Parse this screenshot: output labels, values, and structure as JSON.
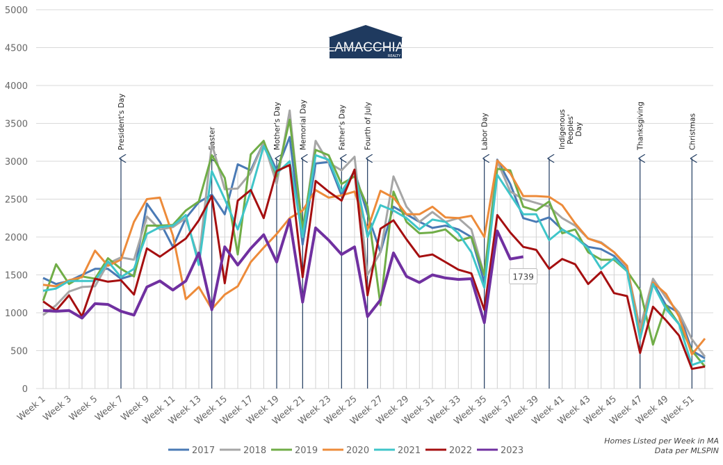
{
  "chart_data": {
    "type": "line",
    "logo": {
      "name": "LAMACCHIA",
      "tagline": "REALTY"
    },
    "categories": [
      "Week 1",
      null,
      "Week 3",
      null,
      "Week 5",
      null,
      "Week 7",
      null,
      "Week 9",
      null,
      "Week 11",
      null,
      "Week 13",
      null,
      "Week 15",
      null,
      "Week 17",
      null,
      "Week 19",
      null,
      "Week 21",
      null,
      "Week 23",
      null,
      "Week 25",
      null,
      "Week 27",
      null,
      "Week 29",
      null,
      "Week 31",
      null,
      "Week 33",
      null,
      "Week 35",
      null,
      "Week 37",
      null,
      "Week 39",
      null,
      "Week 41",
      null,
      "Week 43",
      null,
      "Week 45",
      null,
      "Week 47",
      null,
      "Week 49",
      null,
      "Week 51",
      null
    ],
    "ylim": [
      0,
      5000
    ],
    "yticks": [
      0,
      500,
      1000,
      1500,
      2000,
      2500,
      3000,
      3500,
      4000,
      4500,
      5000
    ],
    "grid": true,
    "series": [
      {
        "name": "2017",
        "color": "#4a7ab5",
        "values": [
          1460,
          1380,
          1420,
          1500,
          1580,
          1580,
          1450,
          1500,
          2440,
          2200,
          1870,
          2250,
          2460,
          2560,
          2300,
          2960,
          2880,
          3250,
          2880,
          3320,
          1900,
          2970,
          2990,
          2550,
          2870,
          2300,
          1800,
          2400,
          2300,
          2200,
          2120,
          2150,
          2100,
          2000,
          1400,
          3020,
          2700,
          2250,
          2200,
          2260,
          2100,
          2000,
          1870,
          1840,
          1750,
          1560,
          750,
          1400,
          1100,
          1000,
          500,
          400
        ]
      },
      {
        "name": "2018",
        "color": "#a6a6a6",
        "values": [
          970,
          1100,
          1280,
          1340,
          1350,
          1650,
          1730,
          1700,
          2270,
          2100,
          2130,
          2250,
          1700,
          3230,
          2630,
          2640,
          2850,
          3250,
          2700,
          3670,
          2000,
          3270,
          2980,
          2880,
          3060,
          1500,
          1800,
          2800,
          2400,
          2200,
          2330,
          2200,
          2250,
          2100,
          1500,
          3000,
          2600,
          2500,
          2450,
          2400,
          2250,
          2150,
          1980,
          1930,
          1800,
          1600,
          800,
          1450,
          1200,
          1000,
          650,
          420
        ]
      },
      {
        "name": "2019",
        "color": "#70ad47",
        "values": [
          1160,
          1640,
          1380,
          1480,
          1450,
          1720,
          1580,
          1480,
          2150,
          2150,
          2160,
          2350,
          2470,
          3080,
          2780,
          1770,
          3090,
          3270,
          2800,
          3550,
          2100,
          3150,
          3080,
          2700,
          2800,
          2400,
          1100,
          2600,
          2200,
          2050,
          2060,
          2100,
          1950,
          2000,
          1500,
          2900,
          2880,
          2400,
          2350,
          2470,
          2050,
          2100,
          1800,
          1700,
          1700,
          1550,
          1300,
          580,
          1100,
          850,
          500,
          290
        ]
      },
      {
        "name": "2020",
        "color": "#ed8b3a",
        "values": [
          1370,
          1350,
          1430,
          1470,
          1820,
          1620,
          1700,
          2200,
          2500,
          2520,
          2020,
          1180,
          1340,
          1050,
          1240,
          1350,
          1670,
          1860,
          2040,
          2250,
          2350,
          2620,
          2520,
          2550,
          2600,
          2100,
          2610,
          2520,
          2300,
          2300,
          2400,
          2260,
          2250,
          2280,
          2000,
          3010,
          2840,
          2540,
          2540,
          2530,
          2420,
          2180,
          1980,
          1920,
          1800,
          1620,
          700,
          1400,
          1250,
          950,
          450,
          660
        ]
      },
      {
        "name": "2021",
        "color": "#3fc5c9",
        "values": [
          1290,
          1320,
          1420,
          1420,
          1420,
          1680,
          1470,
          1580,
          2040,
          2130,
          2150,
          2290,
          1630,
          2870,
          2500,
          2100,
          2600,
          3200,
          2840,
          3000,
          2000,
          3080,
          3020,
          2600,
          2870,
          2000,
          2420,
          2350,
          2250,
          2100,
          2230,
          2200,
          2050,
          1800,
          1330,
          2820,
          2560,
          2300,
          2300,
          1960,
          2100,
          2000,
          1850,
          1580,
          1720,
          1550,
          650,
          1380,
          1050,
          850,
          310,
          370
        ]
      },
      {
        "name": "2022",
        "color": "#a50f10",
        "values": [
          1150,
          1030,
          1230,
          950,
          1450,
          1410,
          1430,
          1240,
          1850,
          1740,
          1860,
          1980,
          2220,
          2540,
          1390,
          2480,
          2620,
          2250,
          2870,
          2950,
          1470,
          2740,
          2600,
          2480,
          2890,
          1230,
          2110,
          2220,
          1970,
          1740,
          1770,
          1670,
          1570,
          1520,
          1040,
          2290,
          2060,
          1870,
          1830,
          1580,
          1710,
          1640,
          1380,
          1540,
          1260,
          1220,
          470,
          1080,
          900,
          700,
          260,
          290
        ]
      },
      {
        "name": "2023",
        "color": "#7030a0",
        "values": [
          1030,
          1020,
          1030,
          930,
          1120,
          1110,
          1020,
          970,
          1340,
          1420,
          1300,
          1420,
          1790,
          1040,
          1870,
          1630,
          1850,
          2030,
          1670,
          2230,
          1140,
          2120,
          1960,
          1770,
          1870,
          950,
          1170,
          1790,
          1480,
          1400,
          1500,
          1460,
          1440,
          1450,
          870,
          2080,
          1710,
          1739,
          null,
          null,
          null,
          null,
          null,
          null,
          null,
          null,
          null,
          null,
          null,
          null,
          null,
          null
        ]
      }
    ],
    "annotations": [
      {
        "x": 7,
        "label": [
          "President's Day"
        ]
      },
      {
        "x": 14,
        "label": [
          "Easter"
        ]
      },
      {
        "x": 19,
        "label": [
          "Mother's Day"
        ]
      },
      {
        "x": 21,
        "label": [
          "Memorial Day"
        ]
      },
      {
        "x": 24,
        "label": [
          "Father's Day"
        ]
      },
      {
        "x": 26,
        "label": [
          "Fourth of July"
        ]
      },
      {
        "x": 35,
        "label": [
          "Labor Day"
        ]
      },
      {
        "x": 40,
        "label": [
          "Indigenous",
          "Peoples'",
          "Day"
        ]
      },
      {
        "x": 47,
        "label": [
          "Thanksgiving"
        ]
      },
      {
        "x": 51,
        "label": [
          "Christmas"
        ]
      }
    ],
    "footnote": [
      "Homes Listed per Week in MA",
      "Data per MLSPIN"
    ]
  }
}
